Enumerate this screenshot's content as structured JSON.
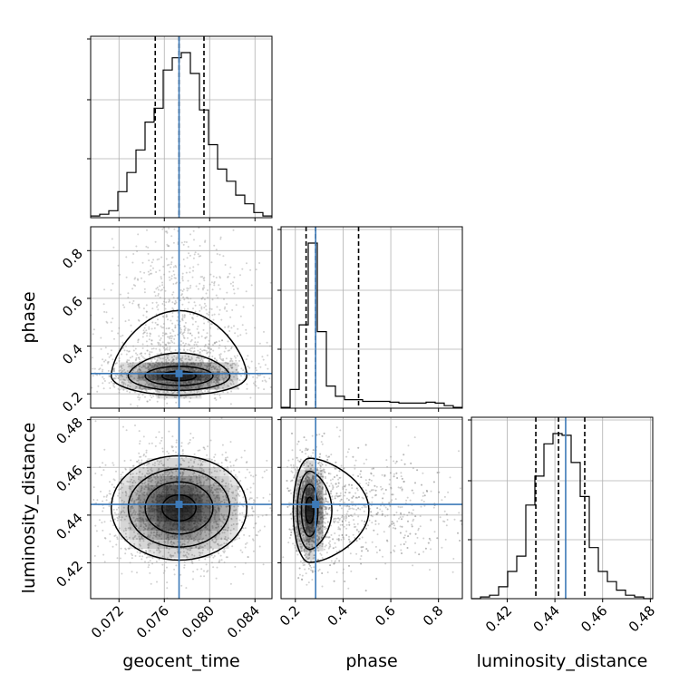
{
  "chart_data": {
    "type": "corner",
    "parameters": [
      "geocent_time",
      "phase",
      "luminosity_distance"
    ],
    "colors": {
      "truth": "#3d7ab8",
      "hist": "#000000",
      "grid": "#b0b0b0",
      "density": "#000000"
    },
    "grid": true,
    "axes": {
      "geocent_time": {
        "label": "geocent_time",
        "lim": [
          0.0695,
          0.0855
        ],
        "ticks": [
          0.072,
          0.076,
          0.08,
          0.084
        ],
        "tick_labels": [
          "0.072",
          "0.076",
          "0.080",
          "0.084"
        ]
      },
      "phase": {
        "label": "phase",
        "lim": [
          0.14,
          0.9
        ],
        "ticks": [
          0.2,
          0.4,
          0.6,
          0.8
        ],
        "tick_labels": [
          "0.2",
          "0.4",
          "0.6",
          "0.8"
        ]
      },
      "luminosity_distance": {
        "label": "luminosity_distance",
        "lim": [
          0.405,
          0.481
        ],
        "ticks": [
          0.42,
          0.44,
          0.46,
          0.48
        ],
        "tick_labels": [
          "0.42",
          "0.44",
          "0.46",
          "0.48"
        ]
      }
    },
    "truths": {
      "geocent_time": 0.0773,
      "phase": 0.285,
      "luminosity_distance": 0.4445
    },
    "quantiles": {
      "geocent_time": [
        0.0752,
        0.0773,
        0.0795
      ],
      "phase": [
        0.245,
        0.285,
        0.465
      ],
      "luminosity_distance": [
        0.432,
        0.4415,
        0.4525
      ]
    },
    "histograms": {
      "geocent_time": {
        "bins": [
          0.0695,
          0.0703,
          0.0711,
          0.0719,
          0.0727,
          0.0735,
          0.0743,
          0.0751,
          0.0759,
          0.0767,
          0.0775,
          0.0783,
          0.0791,
          0.0799,
          0.0807,
          0.0815,
          0.0823,
          0.0831,
          0.0839,
          0.0847,
          0.0855
        ],
        "counts": [
          0.01,
          0.02,
          0.04,
          0.15,
          0.26,
          0.39,
          0.55,
          0.63,
          0.85,
          0.92,
          0.95,
          0.83,
          0.62,
          0.42,
          0.28,
          0.21,
          0.13,
          0.08,
          0.03,
          0.01
        ]
      },
      "phase": {
        "bins": [
          0.14,
          0.178,
          0.216,
          0.254,
          0.292,
          0.33,
          0.368,
          0.406,
          0.444,
          0.482,
          0.52,
          0.558,
          0.596,
          0.634,
          0.672,
          0.71,
          0.748,
          0.786,
          0.824,
          0.862,
          0.9
        ],
        "counts": [
          0.005,
          0.11,
          0.49,
          0.97,
          0.45,
          0.13,
          0.07,
          0.05,
          0.05,
          0.04,
          0.04,
          0.04,
          0.035,
          0.03,
          0.03,
          0.03,
          0.035,
          0.03,
          0.015,
          0.005
        ]
      },
      "luminosity_distance": {
        "bins": [
          0.405,
          0.4088,
          0.4126,
          0.4164,
          0.4202,
          0.424,
          0.4278,
          0.4316,
          0.4354,
          0.4392,
          0.443,
          0.4468,
          0.4506,
          0.4544,
          0.4582,
          0.462,
          0.4658,
          0.4696,
          0.4734,
          0.4772,
          0.481
        ],
        "counts": [
          0.0,
          0.01,
          0.02,
          0.07,
          0.16,
          0.25,
          0.55,
          0.72,
          0.91,
          0.97,
          0.96,
          0.8,
          0.6,
          0.3,
          0.16,
          0.1,
          0.05,
          0.02,
          0.01,
          0.0
        ]
      }
    },
    "joint": {
      "phase_vs_geocent_time": {
        "center": [
          0.0773,
          0.275
        ],
        "sigma": [
          0.0026,
          0.035
        ],
        "tail_to": 0.85
      },
      "luminosity_distance_vs_geocent_time": {
        "center": [
          0.0773,
          0.443
        ],
        "sigma": [
          0.0026,
          0.0095
        ]
      },
      "luminosity_distance_vs_phase": {
        "center": [
          0.26,
          0.442
        ],
        "sigma": [
          0.03,
          0.0095
        ],
        "tail_to": 0.8
      }
    }
  }
}
